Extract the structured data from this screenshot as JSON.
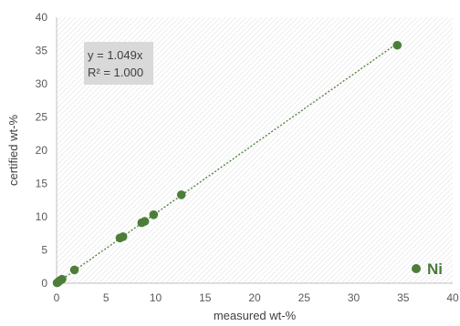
{
  "chart_data": {
    "type": "scatter",
    "xlabel": "measured wt-%",
    "ylabel": "certified wt-%",
    "xlim": [
      0,
      40
    ],
    "ylim": [
      0,
      40
    ],
    "xticks": [
      0,
      5,
      10,
      15,
      20,
      25,
      30,
      35,
      40
    ],
    "yticks": [
      0,
      5,
      10,
      15,
      20,
      25,
      30,
      35,
      40
    ],
    "grid": false,
    "legend_position": "bottom-right",
    "series": [
      {
        "name": "Ni",
        "color": "#4e7d3a",
        "x": [
          0.05,
          0.15,
          0.25,
          0.4,
          0.55,
          1.8,
          6.4,
          6.7,
          8.6,
          8.9,
          9.8,
          12.6,
          34.4
        ],
        "y": [
          0.05,
          0.15,
          0.3,
          0.45,
          0.6,
          2.0,
          6.8,
          7.0,
          9.1,
          9.3,
          10.3,
          13.3,
          35.8
        ]
      }
    ],
    "trendline": {
      "type": "linear-through-origin",
      "slope": 1.049,
      "x_range": [
        0,
        34.4
      ],
      "style": "dotted",
      "color": "#4e7d3a",
      "equation_label": "y = 1.049x",
      "r2_label": "R² = 1.000"
    }
  }
}
